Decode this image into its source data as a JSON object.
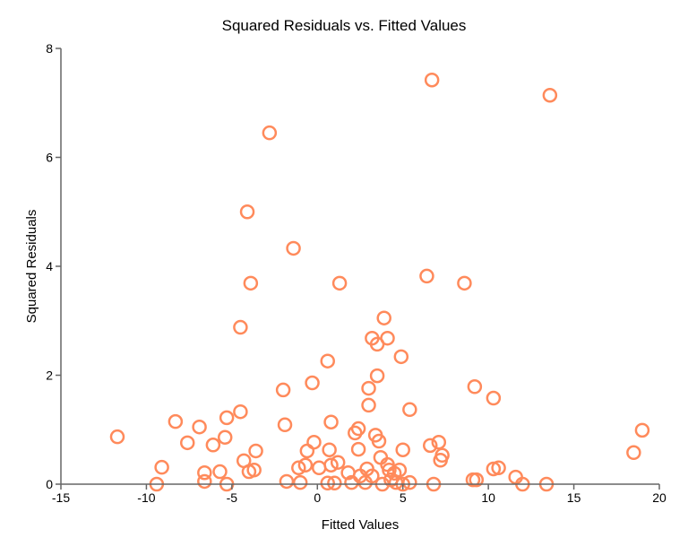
{
  "chart_data": {
    "type": "scatter",
    "title": "Squared Residuals vs. Fitted Values",
    "xlabel": "Fitted Values",
    "ylabel": "Squared Residuals",
    "xlim": [
      -15,
      20
    ],
    "ylim": [
      0,
      8
    ],
    "xticks": [
      -15,
      -10,
      -5,
      0,
      5,
      10,
      15,
      20
    ],
    "yticks": [
      0,
      2,
      4,
      6,
      8
    ],
    "grid": false,
    "marker": "open-circle",
    "color": "#FF8A5B",
    "points": [
      [
        -11.7,
        0.87
      ],
      [
        -9.4,
        0
      ],
      [
        -9.1,
        0.31
      ],
      [
        -8.3,
        1.15
      ],
      [
        -7.6,
        0.76
      ],
      [
        -6.9,
        1.05
      ],
      [
        -6.6,
        0.21
      ],
      [
        -6.6,
        0.05
      ],
      [
        -6.1,
        0.72
      ],
      [
        -5.7,
        0.23
      ],
      [
        -5.4,
        0.86
      ],
      [
        -5.3,
        1.22
      ],
      [
        -5.3,
        0
      ],
      [
        -4.5,
        1.33
      ],
      [
        -4.5,
        2.88
      ],
      [
        -4.3,
        0.43
      ],
      [
        -4.1,
        5.0
      ],
      [
        -4.0,
        0.23
      ],
      [
        -3.9,
        3.69
      ],
      [
        -3.7,
        0.26
      ],
      [
        -3.6,
        0.61
      ],
      [
        -2.8,
        6.45
      ],
      [
        -2.0,
        1.73
      ],
      [
        -1.9,
        1.09
      ],
      [
        -1.8,
        0.05
      ],
      [
        -1.4,
        4.33
      ],
      [
        -1.1,
        0.3
      ],
      [
        -1.0,
        0.03
      ],
      [
        -0.7,
        0.35
      ],
      [
        -0.6,
        0.61
      ],
      [
        -0.3,
        1.86
      ],
      [
        -0.2,
        0.77
      ],
      [
        0.1,
        0.3
      ],
      [
        0.6,
        2.26
      ],
      [
        0.6,
        0.02
      ],
      [
        0.7,
        0.63
      ],
      [
        0.8,
        1.14
      ],
      [
        0.8,
        0.35
      ],
      [
        1.0,
        0.02
      ],
      [
        1.2,
        0.4
      ],
      [
        1.3,
        3.69
      ],
      [
        1.8,
        0.21
      ],
      [
        2.0,
        0.03
      ],
      [
        2.2,
        0.94
      ],
      [
        2.4,
        1.02
      ],
      [
        2.4,
        0.64
      ],
      [
        2.5,
        0.15
      ],
      [
        2.8,
        0.03
      ],
      [
        2.9,
        0.28
      ],
      [
        3.0,
        1.45
      ],
      [
        3.0,
        1.76
      ],
      [
        3.2,
        2.68
      ],
      [
        3.2,
        0.15
      ],
      [
        3.4,
        0.9
      ],
      [
        3.5,
        2.57
      ],
      [
        3.5,
        1.99
      ],
      [
        3.6,
        0.79
      ],
      [
        3.7,
        0.49
      ],
      [
        3.8,
        0
      ],
      [
        3.9,
        3.05
      ],
      [
        4.1,
        2.68
      ],
      [
        4.1,
        0.36
      ],
      [
        4.2,
        0.26
      ],
      [
        4.3,
        0.08
      ],
      [
        4.5,
        0.2
      ],
      [
        4.6,
        0.03
      ],
      [
        4.8,
        0.26
      ],
      [
        4.9,
        2.34
      ],
      [
        5.0,
        0.63
      ],
      [
        5.0,
        0
      ],
      [
        5.4,
        1.37
      ],
      [
        5.4,
        0.03
      ],
      [
        6.4,
        3.82
      ],
      [
        6.6,
        0.71
      ],
      [
        6.8,
        0
      ],
      [
        6.7,
        7.42
      ],
      [
        7.1,
        0.77
      ],
      [
        7.2,
        0.44
      ],
      [
        7.3,
        0.53
      ],
      [
        8.6,
        3.69
      ],
      [
        9.1,
        0.08
      ],
      [
        9.2,
        1.79
      ],
      [
        9.3,
        0.08
      ],
      [
        10.3,
        0.28
      ],
      [
        10.3,
        1.58
      ],
      [
        10.6,
        0.3
      ],
      [
        11.6,
        0.13
      ],
      [
        12.0,
        0
      ],
      [
        13.4,
        0
      ],
      [
        13.6,
        7.14
      ],
      [
        18.5,
        0.58
      ],
      [
        19.0,
        0.99
      ]
    ]
  }
}
